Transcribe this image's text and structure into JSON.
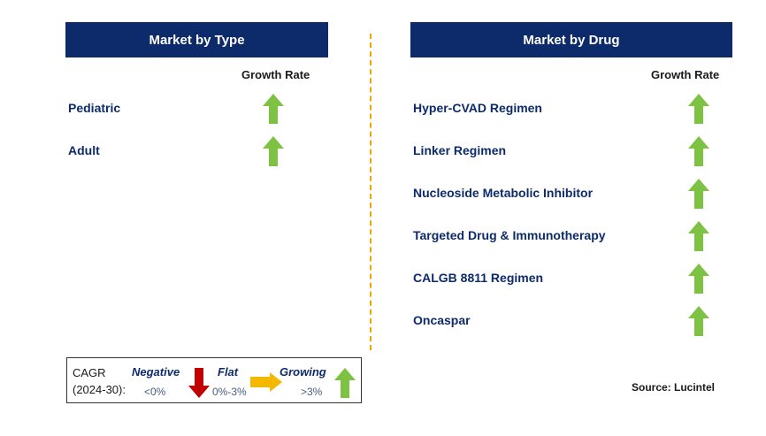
{
  "chart_data": {
    "type": "table",
    "left_panel": {
      "title": "Market by Type",
      "column_header": "Growth Rate",
      "rows": [
        {
          "label": "Pediatric",
          "trend": "growing"
        },
        {
          "label": "Adult",
          "trend": "growing"
        }
      ]
    },
    "right_panel": {
      "title": "Market by Drug",
      "column_header": "Growth Rate",
      "rows": [
        {
          "label": "Hyper-CVAD Regimen",
          "trend": "growing"
        },
        {
          "label": "Linker Regimen",
          "trend": "growing"
        },
        {
          "label": "Nucleoside Metabolic Inhibitor",
          "trend": "growing"
        },
        {
          "label": "Targeted Drug & Immunotherapy",
          "trend": "growing"
        },
        {
          "label": "CALGB 8811 Regimen",
          "trend": "growing"
        },
        {
          "label": "Oncaspar",
          "trend": "growing"
        }
      ]
    },
    "legend": {
      "title_line1": "CAGR",
      "title_line2": "(2024-30):",
      "negative": {
        "label": "Negative",
        "range": "<0%"
      },
      "flat": {
        "label": "Flat",
        "range": "0%-3%"
      },
      "growing": {
        "label": "Growing",
        "range": ">3%"
      }
    },
    "source": "Source: Lucintel"
  },
  "colors": {
    "header_bg": "#0d2b6b",
    "growing": "#7dc242",
    "flat": "#f5b800",
    "negative": "#c00000",
    "divider": "#f0a500"
  }
}
